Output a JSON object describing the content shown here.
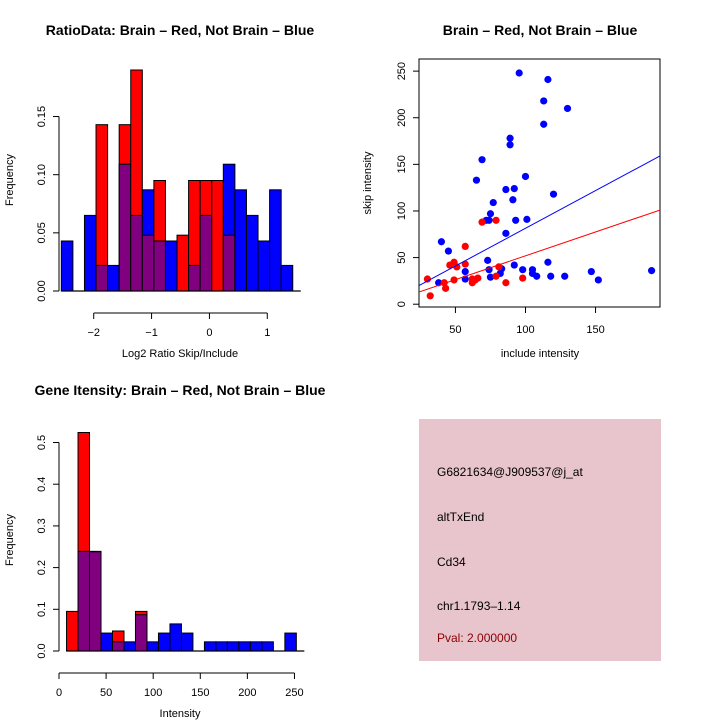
{
  "colors": {
    "brain": "#ff0000",
    "not_brain": "#0000ff",
    "overlap": "#800080",
    "info_bg": "#e8c4cc",
    "pval_text": "#8b0000"
  },
  "chart_data": [
    {
      "id": "ratio_hist",
      "type": "bar",
      "title": "RatioData: Brain – Red, Not Brain – Blue",
      "xlabel": "Log2 Ratio Skip/Include",
      "ylabel": "Frequency",
      "xlim": [
        -2.6,
        1.6
      ],
      "ylim": [
        0,
        0.19
      ],
      "xticks": [
        -2,
        -1,
        0,
        1
      ],
      "xtick_labels": [
        "−2",
        "−1",
        "0",
        "1"
      ],
      "yticks": [
        0.0,
        0.05,
        0.1,
        0.15
      ],
      "ytick_labels": [
        "0.00",
        "0.05",
        "0.10",
        "0.15"
      ],
      "bin_start": -2.56,
      "bin_width": 0.2,
      "series": [
        {
          "name": "Not Brain",
          "color": "not_brain",
          "values": [
            0.043,
            0,
            0.065,
            0.022,
            0.022,
            0.109,
            0.065,
            0.087,
            0.043,
            0.043,
            0,
            0.022,
            0.065,
            0,
            0.109,
            0.087,
            0.065,
            0.043,
            0.087,
            0.022
          ]
        },
        {
          "name": "Brain",
          "color": "brain",
          "values": [
            0,
            0,
            0,
            0.143,
            0,
            0.143,
            0.19,
            0.048,
            0.095,
            0,
            0.048,
            0.095,
            0.095,
            0.095,
            0.048,
            0,
            0,
            0,
            0,
            0
          ]
        }
      ]
    },
    {
      "id": "intensity_scatter",
      "type": "scatter",
      "title": "Brain – Red, Not Brain – Blue",
      "xlabel": "include intensity",
      "ylabel": "skip intensity",
      "xlim": [
        24,
        196
      ],
      "ylim": [
        -3,
        263
      ],
      "xticks": [
        50,
        100,
        150
      ],
      "xtick_labels": [
        "50",
        "100",
        "150"
      ],
      "yticks": [
        0,
        50,
        100,
        150,
        200,
        250
      ],
      "ytick_labels": [
        "0",
        "50",
        "100",
        "150",
        "200",
        "250"
      ],
      "series": [
        {
          "name": "Not Brain",
          "color": "not_brain",
          "points": [
            [
              95.5,
              248
            ],
            [
              116,
              241
            ],
            [
              113,
              218
            ],
            [
              130,
              210
            ],
            [
              113,
              193
            ],
            [
              89,
              178
            ],
            [
              89,
              171
            ],
            [
              69,
              155
            ],
            [
              65,
              133
            ],
            [
              100,
              137
            ],
            [
              86,
              123
            ],
            [
              92,
              124
            ],
            [
              91,
              112
            ],
            [
              120,
              118
            ],
            [
              77,
              109
            ],
            [
              75,
              97
            ],
            [
              72,
              90
            ],
            [
              74,
              90
            ],
            [
              93,
              90
            ],
            [
              101,
              91
            ],
            [
              86,
              76
            ],
            [
              40,
              67
            ],
            [
              45,
              57
            ],
            [
              73,
              47
            ],
            [
              116,
              45
            ],
            [
              92,
              42
            ],
            [
              57,
              35
            ],
            [
              74,
              37
            ],
            [
              98,
              37
            ],
            [
              105,
              37
            ],
            [
              83,
              38
            ],
            [
              82,
              33
            ],
            [
              105,
              33
            ],
            [
              108,
              30
            ],
            [
              118,
              30
            ],
            [
              128,
              30
            ],
            [
              147,
              35
            ],
            [
              152,
              26
            ],
            [
              190,
              36
            ],
            [
              38,
              23
            ],
            [
              57,
              27
            ],
            [
              64,
              26
            ],
            [
              75,
              29
            ]
          ],
          "fit_line": [
            [
              24,
              20
            ],
            [
              196,
              159
            ]
          ]
        },
        {
          "name": "Brain",
          "color": "brain",
          "points": [
            [
              30,
              27
            ],
            [
              32,
              9
            ],
            [
              42,
              23
            ],
            [
              43,
              17
            ],
            [
              46,
              42
            ],
            [
              49,
              45
            ],
            [
              49,
              26
            ],
            [
              51,
              40
            ],
            [
              57,
              62
            ],
            [
              57,
              43
            ],
            [
              62,
              23
            ],
            [
              62,
              27
            ],
            [
              66,
              28
            ],
            [
              69,
              88
            ],
            [
              79,
              90
            ],
            [
              79,
              30
            ],
            [
              81,
              40
            ],
            [
              86,
              23
            ],
            [
              98,
              28
            ],
            [
              64,
              26
            ]
          ],
          "fit_line": [
            [
              24,
              13
            ],
            [
              196,
              101
            ]
          ]
        }
      ]
    },
    {
      "id": "gene_intensity_hist",
      "type": "bar",
      "title": "Gene Itensity: Brain – Red, Not Brain – Blue",
      "xlabel": "Intensity",
      "ylabel": "Frequency",
      "xlim": [
        0,
        258
      ],
      "ylim": [
        0,
        0.53
      ],
      "xticks": [
        0,
        50,
        100,
        150,
        200,
        250
      ],
      "xtick_labels": [
        "0",
        "50",
        "100",
        "150",
        "200",
        "250"
      ],
      "yticks": [
        0.0,
        0.1,
        0.2,
        0.3,
        0.4,
        0.5
      ],
      "ytick_labels": [
        "0.0",
        "0.1",
        "0.2",
        "0.3",
        "0.4",
        "0.5"
      ],
      "bin_start": 8,
      "bin_width": 12.2,
      "series": [
        {
          "name": "Not Brain",
          "color": "not_brain",
          "values": [
            0,
            0.239,
            0.239,
            0.043,
            0.022,
            0.022,
            0.087,
            0.022,
            0.043,
            0.065,
            0.043,
            0,
            0.022,
            0.022,
            0.022,
            0.022,
            0.022,
            0.022,
            0,
            0.043
          ]
        },
        {
          "name": "Brain",
          "color": "brain",
          "values": [
            0.095,
            0.524,
            0.238,
            0,
            0.048,
            0,
            0.095,
            0,
            0,
            0,
            0,
            0,
            0,
            0,
            0,
            0,
            0,
            0,
            0,
            0
          ]
        }
      ]
    }
  ],
  "info_panel": {
    "probe_id": "G6821634@J909537@j_at",
    "event_type": "altTxEnd",
    "gene": "Cd34",
    "location": "chr1.1793–1.14",
    "pval": "Pval: 2.000000"
  }
}
